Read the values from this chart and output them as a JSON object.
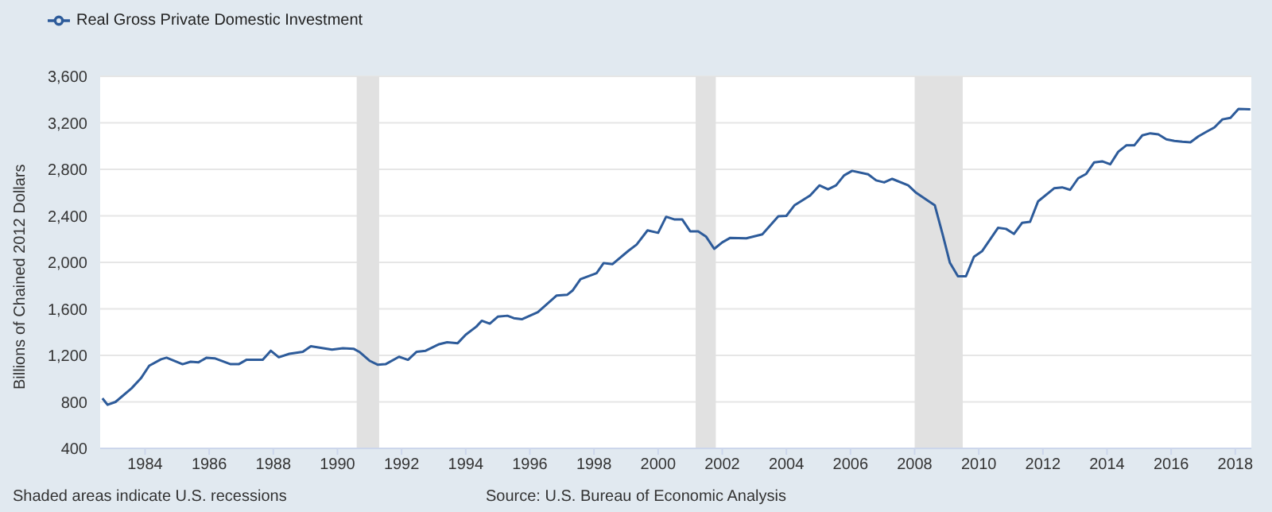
{
  "chart_data": {
    "type": "line",
    "ylabel": "Billions of Chained 2012 Dollars",
    "annotations": [
      "Shaded areas indicate U.S. recessions",
      "Source: U.S. Bureau of Economic Analysis"
    ],
    "xlim": [
      1982.6,
      2018.5
    ],
    "xticks": [
      1984,
      1986,
      1988,
      1990,
      1992,
      1994,
      1996,
      1998,
      2000,
      2002,
      2004,
      2006,
      2008,
      2010,
      2012,
      2014,
      2016,
      2018
    ],
    "ylim": [
      400,
      3600
    ],
    "yticks": [
      {
        "value": 400,
        "label": "400"
      },
      {
        "value": 800,
        "label": "800"
      },
      {
        "value": 1200,
        "label": "1,200"
      },
      {
        "value": 1600,
        "label": "1,600"
      },
      {
        "value": 2000,
        "label": "2,000"
      },
      {
        "value": 2400,
        "label": "2,400"
      },
      {
        "value": 2800,
        "label": "2,800"
      },
      {
        "value": 3200,
        "label": "3,200"
      },
      {
        "value": 3600,
        "label": "3,600"
      }
    ],
    "grid": "y",
    "legend": "top left",
    "bands": [
      {
        "axis": "x",
        "from": 1990.6,
        "to": 1991.3,
        "color": "#e1e1e1"
      },
      {
        "axis": "x",
        "from": 2001.17,
        "to": 2001.8,
        "color": "#e1e1e1"
      },
      {
        "axis": "x",
        "from": 2008.0,
        "to": 2009.5,
        "color": "#e1e1e1"
      }
    ],
    "series": [
      {
        "name": "Real Gross Private Domestic Investment",
        "color": "#2d5b9a",
        "x": [
          1982.67,
          1982.83,
          1983.08,
          1983.58,
          1983.87,
          1984.13,
          1984.5,
          1984.67,
          1985.17,
          1985.42,
          1985.67,
          1985.92,
          1986.17,
          1986.67,
          1986.92,
          1987.17,
          1987.67,
          1987.92,
          1988.17,
          1988.5,
          1988.92,
          1989.17,
          1989.83,
          1990.17,
          1990.5,
          1990.7,
          1991.0,
          1991.25,
          1991.5,
          1991.92,
          1992.2,
          1992.47,
          1992.75,
          1993.17,
          1993.42,
          1993.75,
          1994.0,
          1994.33,
          1994.5,
          1994.75,
          1995.0,
          1995.3,
          1995.5,
          1995.75,
          1996.0,
          1996.25,
          1996.83,
          1997.17,
          1997.33,
          1997.58,
          1998.08,
          1998.3,
          1998.58,
          1999.08,
          1999.33,
          1999.67,
          2000.0,
          2000.25,
          2000.5,
          2000.75,
          2001.0,
          2001.25,
          2001.5,
          2001.75,
          2002.0,
          2002.25,
          2002.75,
          2003.25,
          2003.75,
          2004.0,
          2004.25,
          2004.75,
          2005.03,
          2005.3,
          2005.55,
          2005.8,
          2006.05,
          2006.55,
          2006.8,
          2007.05,
          2007.3,
          2007.8,
          2008.05,
          2008.63,
          2008.88,
          2009.1,
          2009.35,
          2009.6,
          2009.85,
          2010.1,
          2010.6,
          2010.85,
          2011.1,
          2011.35,
          2011.6,
          2011.85,
          2012.35,
          2012.6,
          2012.85,
          2013.1,
          2013.35,
          2013.6,
          2013.85,
          2014.1,
          2014.35,
          2014.6,
          2014.85,
          2015.1,
          2015.35,
          2015.6,
          2015.85,
          2016.1,
          2016.35,
          2016.6,
          2016.85,
          2017.1,
          2017.35,
          2017.6,
          2017.85,
          2018.1,
          2018.47
        ],
        "values": [
          831,
          775,
          800,
          917,
          1003,
          1111,
          1167,
          1180,
          1124,
          1145,
          1141,
          1180,
          1175,
          1124,
          1124,
          1163,
          1163,
          1240,
          1184,
          1214,
          1231,
          1279,
          1249,
          1262,
          1257,
          1227,
          1154,
          1120,
          1124,
          1188,
          1162,
          1231,
          1240,
          1296,
          1313,
          1305,
          1378,
          1447,
          1498,
          1473,
          1533,
          1541,
          1520,
          1511,
          1541,
          1572,
          1714,
          1722,
          1757,
          1856,
          1907,
          1994,
          1985,
          2101,
          2153,
          2275,
          2254,
          2392,
          2370,
          2370,
          2267,
          2267,
          2220,
          2116,
          2172,
          2211,
          2207,
          2241,
          2396,
          2400,
          2490,
          2577,
          2662,
          2628,
          2662,
          2748,
          2787,
          2757,
          2705,
          2688,
          2718,
          2662,
          2598,
          2490,
          2233,
          1996,
          1880,
          1880,
          2048,
          2095,
          2297,
          2288,
          2245,
          2340,
          2349,
          2525,
          2637,
          2645,
          2624,
          2723,
          2761,
          2860,
          2869,
          2843,
          2951,
          3006,
          3006,
          3092,
          3110,
          3101,
          3058,
          3045,
          3037,
          3032,
          3084,
          3123,
          3161,
          3230,
          3243,
          3320,
          3316
        ]
      }
    ]
  }
}
